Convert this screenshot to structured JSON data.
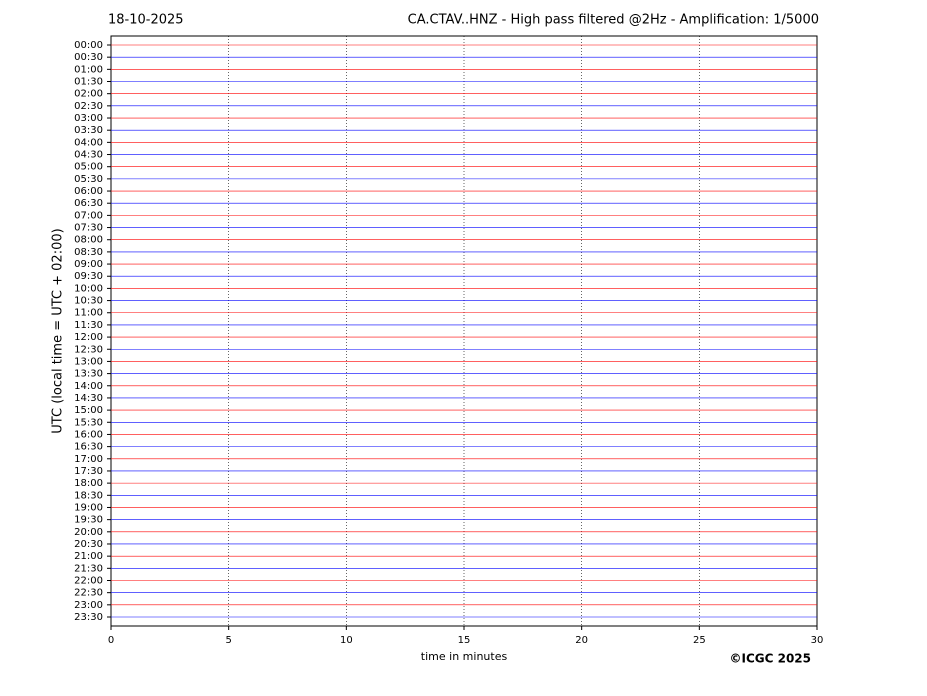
{
  "chart_data": {
    "type": "helicorder",
    "date": "18-10-2025",
    "title": "CA.CTAV..HNZ - High pass filtered @2Hz - Amplification: 1/5000",
    "y_label": "UTC (local time = UTC + 02:00)",
    "x_label": "time in minutes",
    "credit": "©ICGC 2025",
    "categories": [
      "00:00",
      "00:30",
      "01:00",
      "01:30",
      "02:00",
      "02:30",
      "03:00",
      "03:30",
      "04:00",
      "04:30",
      "05:00",
      "05:30",
      "06:00",
      "06:30",
      "07:00",
      "07:30",
      "08:00",
      "08:30",
      "09:00",
      "09:30",
      "10:00",
      "10:30",
      "11:00",
      "11:30",
      "12:00",
      "12:30",
      "13:00",
      "13:30",
      "14:00",
      "14:30",
      "15:00",
      "15:30",
      "16:00",
      "16:30",
      "17:00",
      "17:30",
      "18:00",
      "18:30",
      "19:00",
      "19:30",
      "20:00",
      "20:30",
      "21:00",
      "21:30",
      "22:00",
      "22:30",
      "23:00",
      "23:30"
    ],
    "row_colors": [
      "#ff0000",
      "#0000ff"
    ],
    "xlim": [
      0,
      30
    ],
    "xticks": [
      0,
      5,
      10,
      15,
      20,
      25,
      30
    ],
    "grid": true
  }
}
